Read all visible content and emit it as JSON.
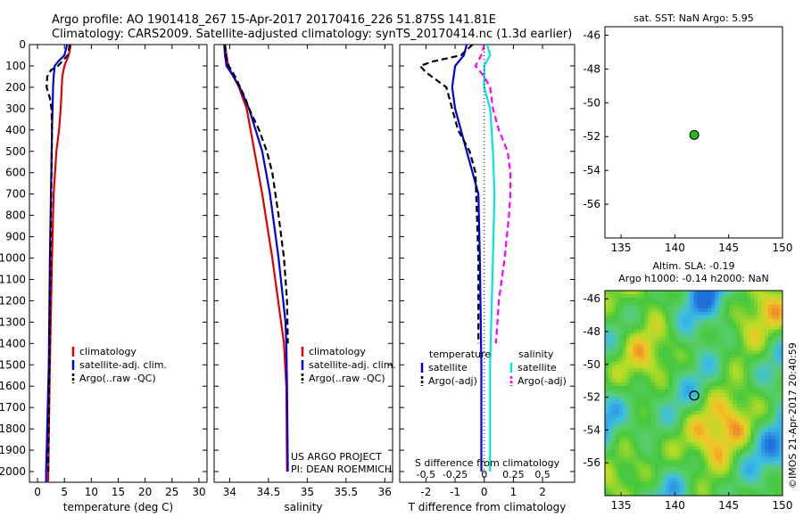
{
  "header": {
    "line1": "Argo profile: AO 1901418_267 15-Apr-2017 20170416_226 51.875S 141.81E",
    "line2": "Climatology: CARS2009. Satellite-adjusted climatology: synTS_20170414.nc (1.3d earlier)"
  },
  "credits": {
    "project": "US ARGO PROJECT",
    "pi": "PI: DEAN ROEMMICH",
    "watermark": "©IMOS 21-Apr-2017 20:40:59"
  },
  "colors": {
    "climatology": "#e00000",
    "satellite": "#0000e0",
    "argo": "#000000",
    "sat_salinity": "#00e5e5",
    "argo_salinity": "#ff00ff",
    "marker_green": "#22bb22"
  },
  "chart_data": [
    {
      "type": "line",
      "id": "temperature",
      "xlabel": "temperature (deg C)",
      "ylabel": "",
      "xlim": [
        -1.5,
        31.5
      ],
      "ylim": [
        2050,
        0
      ],
      "xticks": [
        0,
        5,
        10,
        15,
        20,
        25,
        30
      ],
      "yticks": [
        0,
        100,
        200,
        300,
        400,
        500,
        600,
        700,
        800,
        900,
        1000,
        1100,
        1200,
        1300,
        1400,
        1500,
        1600,
        1700,
        1800,
        1900,
        2000
      ],
      "legend": [
        "climatology",
        "satellite-adj. clim.",
        "Argo(..raw -QC)"
      ],
      "legend_placement": "lower-right",
      "series": [
        {
          "name": "climatology",
          "color": "climatology",
          "dash": false,
          "depth": [
            0,
            50,
            100,
            150,
            200,
            300,
            400,
            500,
            700,
            1000,
            1500,
            2000,
            2050
          ],
          "values": [
            6.2,
            5.8,
            5.0,
            4.6,
            4.5,
            4.3,
            4.0,
            3.5,
            3.0,
            2.7,
            2.3,
            2.0,
            1.95
          ]
        },
        {
          "name": "satellite-adj. clim.",
          "color": "satellite",
          "dash": false,
          "depth": [
            0,
            50,
            80,
            100,
            150,
            200,
            300,
            400,
            700,
            1000,
            1500,
            2000,
            2050
          ],
          "values": [
            5.5,
            5.0,
            3.8,
            3.2,
            3.0,
            2.9,
            2.8,
            2.7,
            2.5,
            2.3,
            2.1,
            1.6,
            1.6
          ]
        },
        {
          "name": "Argo(..raw -QC)",
          "color": "argo",
          "dash": true,
          "depth": [
            0,
            50,
            100,
            120,
            150,
            200,
            250,
            300,
            400,
            600,
            1000,
            1500,
            2000
          ],
          "values": [
            6.0,
            5.6,
            3.8,
            2.5,
            1.8,
            1.7,
            2.3,
            2.6,
            2.7,
            2.6,
            2.4,
            2.2,
            2.0
          ]
        }
      ]
    },
    {
      "type": "line",
      "id": "salinity",
      "xlabel": "salinity",
      "ylabel": "",
      "xlim": [
        33.8,
        36.1
      ],
      "ylim": [
        2050,
        0
      ],
      "xticks": [
        34,
        34.5,
        35,
        35.5,
        36
      ],
      "legend": [
        "climatology",
        "satellite-adj. clim.",
        "Argo(..raw -QC)"
      ],
      "legend_placement": "lower-right",
      "series": [
        {
          "name": "climatology",
          "color": "climatology",
          "dash": false,
          "depth": [
            0,
            50,
            100,
            150,
            200,
            300,
            500,
            700,
            1000,
            1400,
            1600,
            2000
          ],
          "values": [
            33.94,
            33.96,
            33.98,
            34.05,
            34.12,
            34.22,
            34.32,
            34.42,
            34.55,
            34.7,
            34.73,
            34.74
          ]
        },
        {
          "name": "satellite-adj. clim.",
          "color": "satellite",
          "dash": false,
          "depth": [
            0,
            50,
            100,
            150,
            200,
            300,
            500,
            700,
            1000,
            1300,
            1400,
            1600,
            2000
          ],
          "values": [
            33.93,
            33.94,
            33.96,
            34.05,
            34.13,
            34.25,
            34.42,
            34.52,
            34.63,
            34.72,
            34.73,
            34.74,
            34.75
          ]
        },
        {
          "name": "Argo(..raw -QC)",
          "color": "argo",
          "dash": true,
          "depth": [
            0,
            50,
            100,
            150,
            250,
            300,
            400,
            500,
            600,
            800,
            1000,
            1200,
            1400
          ],
          "values": [
            33.94,
            33.95,
            33.99,
            34.07,
            34.2,
            34.25,
            34.38,
            34.48,
            34.55,
            34.63,
            34.7,
            34.74,
            34.75
          ]
        }
      ]
    },
    {
      "type": "line",
      "id": "difference",
      "xlabel": "T difference from climatology",
      "x2label": "S difference from climatology",
      "xlim": [
        -2.9,
        3.1
      ],
      "ylim": [
        2050,
        0
      ],
      "xticks": [
        -2,
        -1,
        0,
        1,
        2
      ],
      "x2ticks": [
        "-0.5",
        "-0.25",
        "0",
        "0.25",
        "0.5"
      ],
      "x2tick_positions": [
        -2,
        -1,
        0,
        1,
        2
      ],
      "legend_headers": [
        "temperature",
        "salinity"
      ],
      "legend": [
        "satellite",
        "Argo(-adj)",
        "satellite",
        "Argo(-adj)"
      ],
      "series": [
        {
          "name": "satellite",
          "group": "temperature",
          "color": "satellite",
          "dash": false,
          "depth": [
            0,
            50,
            100,
            200,
            300,
            400,
            500,
            600,
            700,
            1000,
            1500,
            2000
          ],
          "values": [
            -0.6,
            -0.7,
            -1.0,
            -1.1,
            -1.0,
            -0.8,
            -0.6,
            -0.4,
            -0.2,
            -0.15,
            -0.1,
            -0.1
          ]
        },
        {
          "name": "Argo(-adj)",
          "group": "temperature",
          "color": "argo",
          "dash": true,
          "depth": [
            0,
            50,
            80,
            100,
            130,
            200,
            300,
            400,
            500,
            600,
            1000,
            1400
          ],
          "values": [
            -0.4,
            -0.8,
            -1.8,
            -2.2,
            -2.0,
            -1.3,
            -1.1,
            -0.9,
            -0.5,
            -0.3,
            -0.2,
            -0.2
          ]
        },
        {
          "name": "satellite",
          "group": "salinity",
          "color": "sat_salinity",
          "dash": false,
          "depth": [
            0,
            50,
            100,
            200,
            300,
            500,
            700,
            1000,
            1500,
            2000
          ],
          "values": [
            0.1,
            0.2,
            0.0,
            0.0,
            0.2,
            0.3,
            0.35,
            0.3,
            0.2,
            0.2
          ]
        },
        {
          "name": "Argo(-adj)",
          "group": "salinity",
          "color": "argo_salinity",
          "dash": true,
          "depth": [
            0,
            50,
            100,
            150,
            200,
            300,
            400,
            500,
            600,
            700,
            800,
            1000,
            1200,
            1400
          ],
          "values": [
            0.0,
            -0.1,
            -0.3,
            0.0,
            0.2,
            0.3,
            0.5,
            0.8,
            0.9,
            0.9,
            0.85,
            0.7,
            0.5,
            0.4
          ]
        }
      ]
    },
    {
      "type": "scatter",
      "id": "sst-map",
      "title": "sat. SST: NaN Argo: 5.95",
      "xlim": [
        133.5,
        150
      ],
      "ylim": [
        -58,
        -45.5
      ],
      "xticks": [
        135,
        140,
        145,
        150
      ],
      "yticks": [
        -46,
        -48,
        -50,
        -52,
        -54,
        -56
      ],
      "points": [
        {
          "x": 141.8,
          "y": -51.9
        }
      ]
    },
    {
      "type": "heatmap",
      "id": "sla-map",
      "title_line1": "Altim. SLA: -0.19",
      "title_line2": "Argo h1000: -0.14 h2000: NaN",
      "xlim": [
        133.5,
        150
      ],
      "ylim": [
        -58,
        -45.5
      ],
      "xticks": [
        135,
        140,
        145,
        150
      ],
      "yticks": [
        -46,
        -48,
        -50,
        -52,
        -54,
        -56
      ],
      "points": [
        {
          "x": 141.8,
          "y": -51.9
        }
      ]
    }
  ]
}
